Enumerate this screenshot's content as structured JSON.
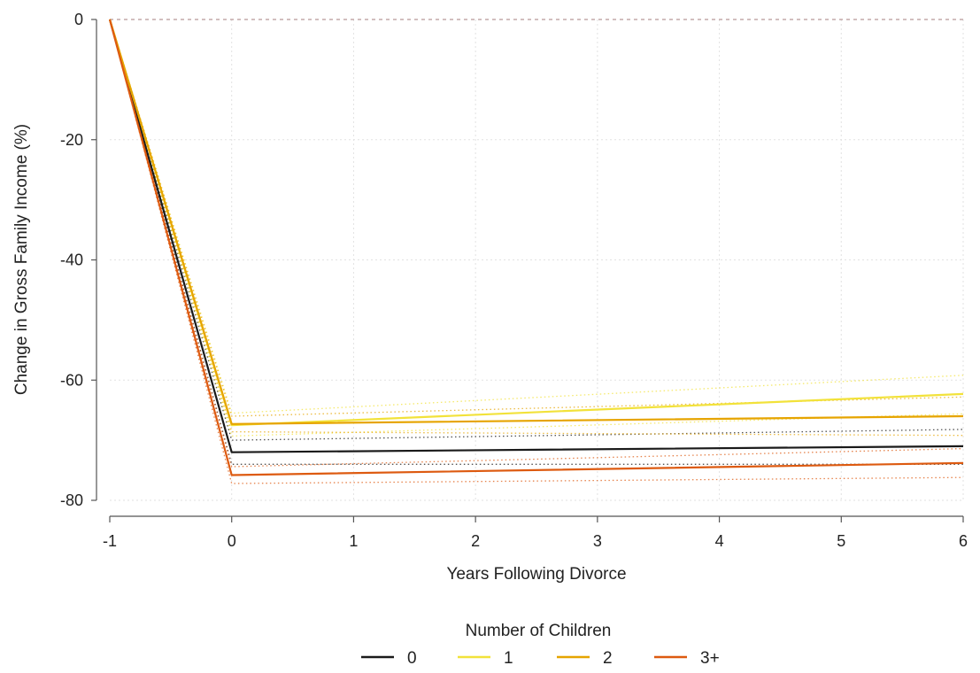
{
  "chart_data": {
    "type": "line",
    "title": "",
    "xlabel": "Years Following Divorce",
    "ylabel": "Change in Gross Family Income (%)",
    "xlim": [
      -1,
      6
    ],
    "ylim": [
      -80,
      0
    ],
    "x_ticks": [
      -1,
      0,
      1,
      2,
      3,
      4,
      5,
      6
    ],
    "y_ticks": [
      0,
      -20,
      -40,
      -60,
      -80
    ],
    "x_tick_labels": [
      "-1",
      "0",
      "1",
      "2",
      "3",
      "4",
      "5",
      "6"
    ],
    "y_tick_labels": [
      "0",
      "-20",
      "-40",
      "-60",
      "-80"
    ],
    "grid": true,
    "reference_line": {
      "y": 0,
      "style": "dashed",
      "color": "#c4a8a8"
    },
    "legend": {
      "title": "Number of Children",
      "position": "bottom"
    },
    "x": [
      -1,
      0,
      6
    ],
    "series": [
      {
        "name": "0",
        "color": "#1a1a1a",
        "values": [
          0,
          -72,
          -71
        ],
        "ci_lower": [
          0,
          -74,
          -74
        ],
        "ci_upper": [
          0,
          -70,
          -68.2
        ]
      },
      {
        "name": "1",
        "color": "#f2e23a",
        "values": [
          0,
          -67.5,
          -62.3
        ],
        "ci_lower": [
          0,
          -69.3,
          -65.6
        ],
        "ci_upper": [
          0,
          -65.5,
          -59.2
        ]
      },
      {
        "name": "2",
        "color": "#e6a400",
        "values": [
          0,
          -67.3,
          -66
        ],
        "ci_lower": [
          0,
          -68.6,
          -69.2
        ],
        "ci_upper": [
          0,
          -66,
          -62.8
        ]
      },
      {
        "name": "3+",
        "color": "#dd5a10",
        "values": [
          0,
          -75.8,
          -73.8
        ],
        "ci_lower": [
          0,
          -77.2,
          -76.2
        ],
        "ci_upper": [
          0,
          -74.4,
          -71.4
        ]
      }
    ]
  }
}
